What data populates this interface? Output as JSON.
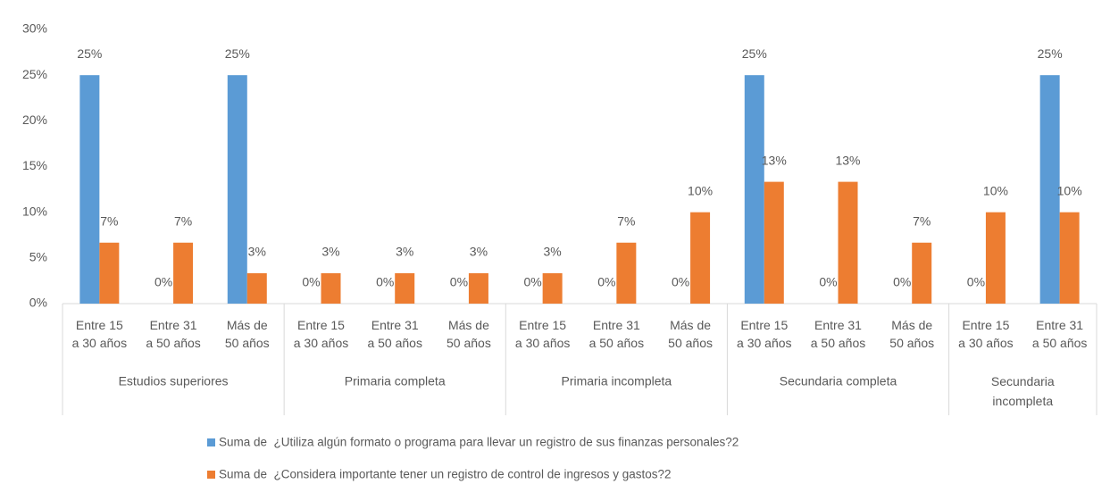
{
  "chart_data": {
    "type": "bar",
    "groups": [
      {
        "label": "Estudios superiores",
        "categories": [
          "Entre 15 a 30 años",
          "Entre 31 a 50 años",
          "Más de 50 años"
        ]
      },
      {
        "label": "Primaria completa",
        "categories": [
          "Entre 15 a 30 años",
          "Entre 31 a 50 años",
          "Más de 50 años"
        ]
      },
      {
        "label": "Primaria incompleta",
        "categories": [
          "Entre 15 a 30 años",
          "Entre 31 a 50 años",
          "Más de 50 años"
        ]
      },
      {
        "label": "Secundaria completa",
        "categories": [
          "Entre 15 a 30 años",
          "Entre 31 a 50 años",
          "Más de 50 años"
        ]
      },
      {
        "label": "Secundaria incompleta",
        "categories": [
          "Entre 15 a 30 años",
          "Entre 31 a 50 años"
        ]
      }
    ],
    "series": [
      {
        "name": "Suma de  ¿Utiliza algún formato o programa para llevar un registro de sus finanzas personales?2",
        "color": "#5b9bd5",
        "values": [
          25,
          0,
          25,
          0,
          0,
          0,
          0,
          0,
          0,
          25,
          0,
          0,
          0,
          25
        ],
        "value_labels": [
          "25%",
          "0%",
          "25%",
          "0%",
          "0%",
          "0%",
          "0%",
          "0%",
          "0%",
          "25%",
          "0%",
          "0%",
          "0%",
          "25%"
        ]
      },
      {
        "name": "Suma de  ¿Considera importante tener un registro de control de ingresos y gastos?2",
        "color": "#ed7d31",
        "values": [
          6.67,
          6.67,
          3.33,
          3.33,
          3.33,
          3.33,
          3.33,
          6.67,
          10,
          13.33,
          13.33,
          6.67,
          10,
          10
        ],
        "value_labels": [
          "7%",
          "7%",
          "3%",
          "3%",
          "3%",
          "3%",
          "3%",
          "7%",
          "10%",
          "13%",
          "13%",
          "7%",
          "10%",
          "10%"
        ]
      }
    ],
    "ylim": [
      0,
      30
    ],
    "yticks": [
      {
        "value": 0,
        "label": "0%"
      },
      {
        "value": 5,
        "label": "5%"
      },
      {
        "value": 10,
        "label": "10%"
      },
      {
        "value": 15,
        "label": "15%"
      },
      {
        "value": 20,
        "label": "20%"
      },
      {
        "value": 25,
        "label": "25%"
      },
      {
        "value": 30,
        "label": "30%"
      }
    ],
    "grid": false,
    "legend": "bottom"
  }
}
